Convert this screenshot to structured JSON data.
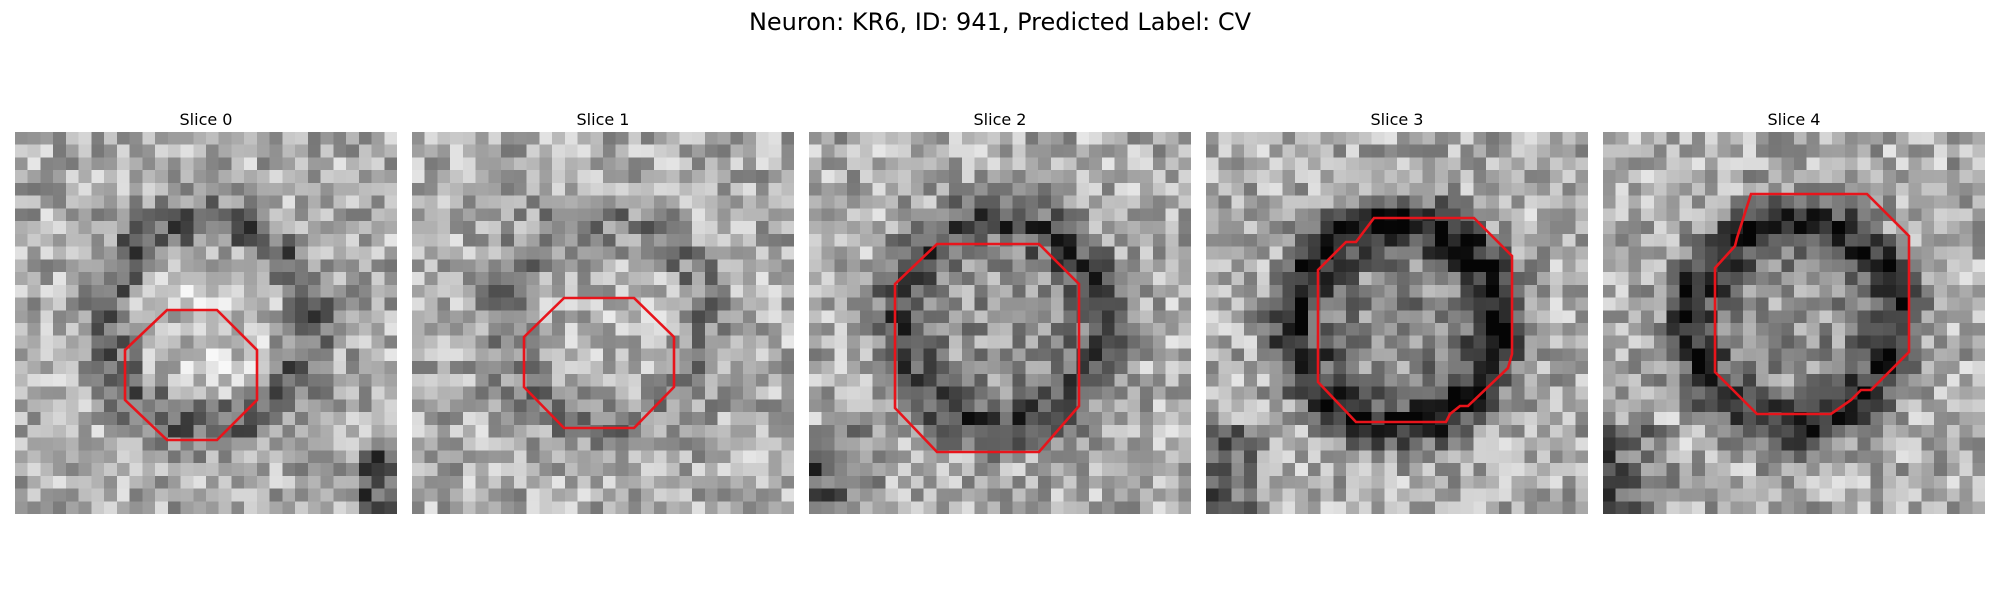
{
  "figure": {
    "title": "Neuron: KR6, ID: 941, Predicted Label: CV",
    "outline_color": "#e8141b",
    "panels": [
      {
        "title": "Slice 0",
        "seed": 11,
        "ring": 0.32,
        "center": 0.22,
        "blob": "br"
      },
      {
        "title": "Slice 1",
        "seed": 29,
        "ring": 0.18,
        "center": 0.1,
        "blob": "none"
      },
      {
        "title": "Slice 2",
        "seed": 47,
        "ring": 0.42,
        "center": -0.25,
        "blob": "bl"
      },
      {
        "title": "Slice 3",
        "seed": 83,
        "ring": 0.6,
        "center": -0.4,
        "blob": "bl"
      },
      {
        "title": "Slice 4",
        "seed": 101,
        "ring": 0.55,
        "center": -0.3,
        "blob": "bl"
      }
    ]
  }
}
